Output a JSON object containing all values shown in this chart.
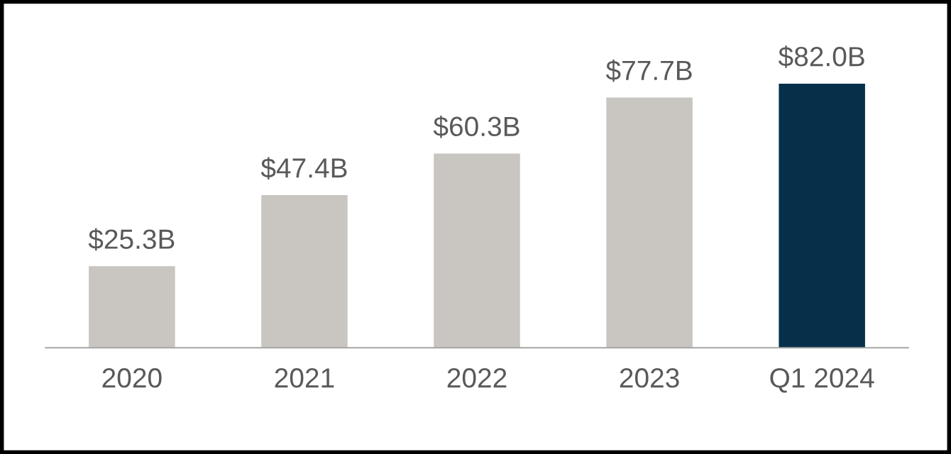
{
  "chart_data": {
    "type": "bar",
    "categories": [
      "2020",
      "2021",
      "2022",
      "2023",
      "Q1 2024"
    ],
    "values": [
      25.3,
      47.4,
      60.3,
      77.7,
      82.0
    ],
    "value_labels": [
      "$25.3B",
      "$47.4B",
      "$60.3B",
      "$77.7B",
      "$82.0B"
    ],
    "colors": [
      "#c9c6c1",
      "#c9c6c1",
      "#c9c6c1",
      "#c9c6c1",
      "#06304a"
    ],
    "grid": false,
    "legend": false
  }
}
